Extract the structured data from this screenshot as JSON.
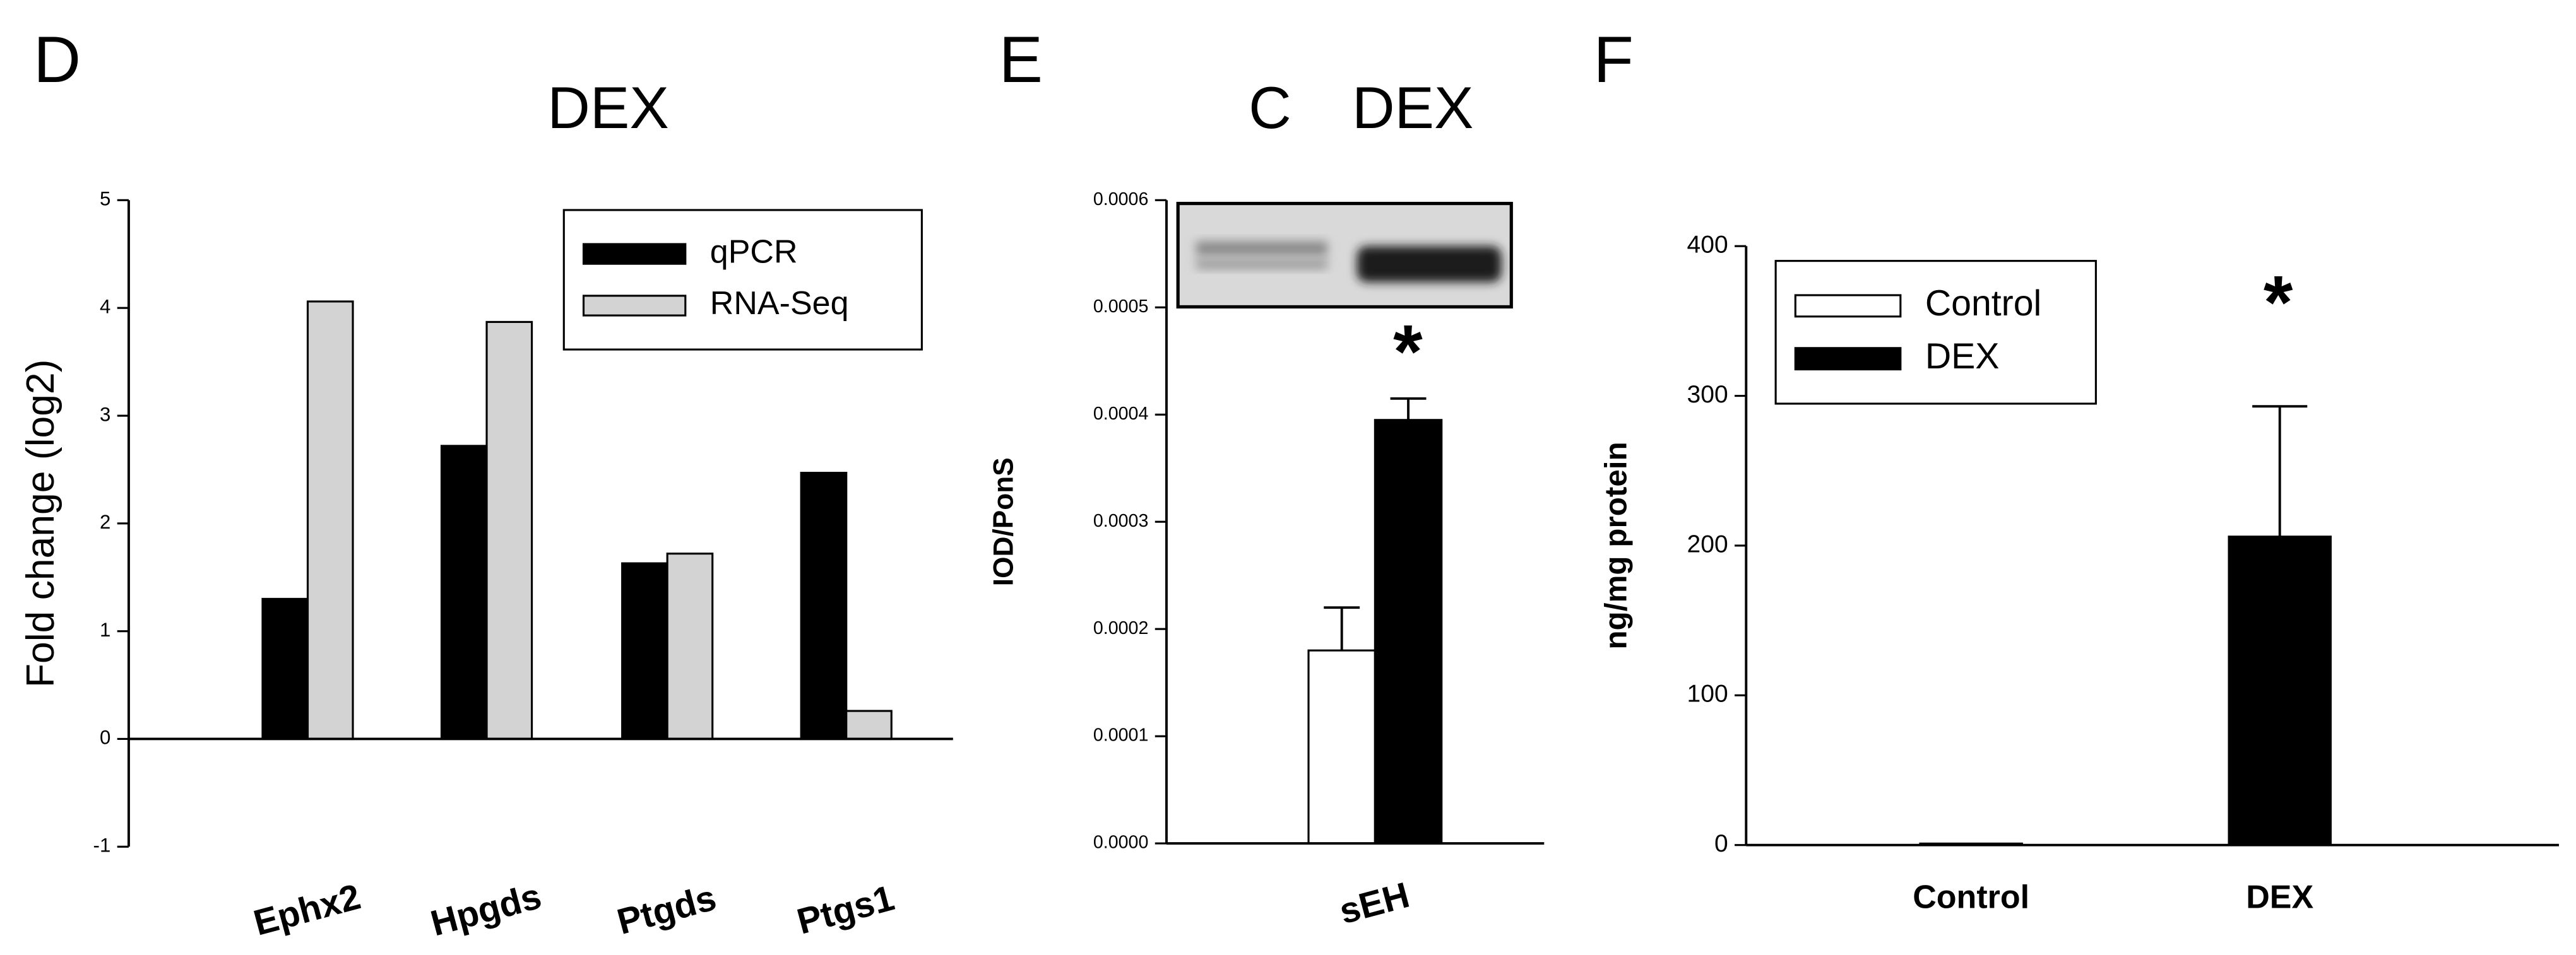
{
  "chart_data": [
    {
      "type": "bar",
      "panel": "D",
      "title": "DEX",
      "categories": [
        "Ephx2",
        "Hpgds",
        "Ptgds",
        "Ptgs1"
      ],
      "series": [
        {
          "name": "qPCR",
          "color": "#000000",
          "values": [
            1.3,
            2.72,
            1.63,
            2.47
          ]
        },
        {
          "name": "RNA-Seq",
          "color": "#d3d3d3",
          "values": [
            4.06,
            3.87,
            1.72,
            0.26
          ]
        }
      ],
      "ylabel": "Fold change (log2)",
      "ylim": [
        -1,
        5
      ],
      "yticks": [
        -1,
        0,
        1,
        2,
        3,
        4,
        5
      ],
      "legend": "upper right"
    },
    {
      "type": "bar",
      "panel": "E",
      "lane_labels": [
        "C",
        "DEX"
      ],
      "categories": [
        "sEH"
      ],
      "series": [
        {
          "color": "#ffffff",
          "values": [
            0.00018
          ],
          "errors": [
            4e-05
          ]
        },
        {
          "color": "#000000",
          "values": [
            0.000395
          ],
          "errors": [
            2e-05
          ]
        }
      ],
      "ylabel": "IOD/PonS",
      "ylim": [
        0,
        0.0006
      ],
      "yticks": [
        {
          "value": 0,
          "label": "0.0000"
        },
        {
          "value": 0.0001,
          "label": "0.0001"
        },
        {
          "value": 0.0002,
          "label": "0.0002"
        },
        {
          "value": 0.0003,
          "label": "0.0003"
        },
        {
          "value": 0.0004,
          "label": "0.0004"
        },
        {
          "value": 0.0005,
          "label": "0.0005"
        },
        {
          "value": 0.0006,
          "label": "0.0006"
        }
      ],
      "annotations": [
        "*"
      ]
    },
    {
      "type": "bar",
      "panel": "F",
      "categories": [
        "Control",
        "DEX"
      ],
      "series": [
        {
          "name": "Control",
          "color": "#ffffff",
          "values": [
            1,
            null
          ],
          "errors": [
            null,
            null
          ]
        },
        {
          "name": "DEX",
          "color": "#000000",
          "values": [
            null,
            206
          ],
          "errors": [
            null,
            87
          ]
        }
      ],
      "ylabel": "ng/mg protein",
      "ylim": [
        0,
        400
      ],
      "yticks": [
        0,
        100,
        200,
        300,
        400
      ],
      "legend": "upper left",
      "annotations": [
        "*"
      ]
    }
  ]
}
